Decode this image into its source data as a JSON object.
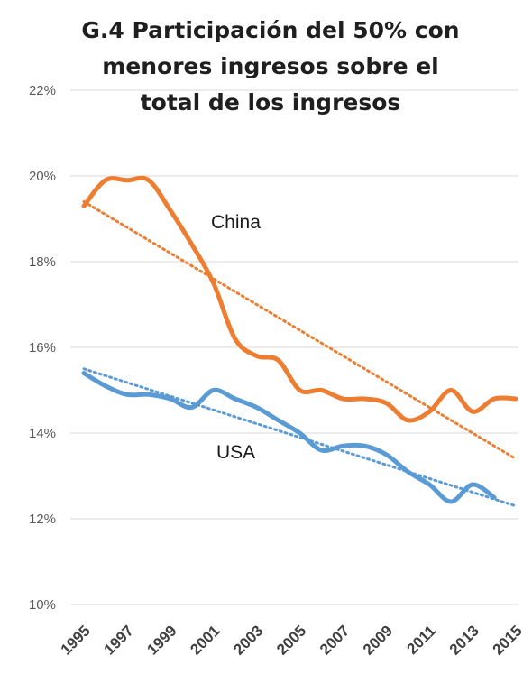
{
  "chart_data": {
    "type": "line",
    "title_lines": [
      "G.4 Participación del 50% con",
      "menores ingresos sobre el",
      "total de los ingresos"
    ],
    "x": [
      1995,
      1996,
      1997,
      1998,
      1999,
      2000,
      2001,
      2002,
      2003,
      2004,
      2005,
      2006,
      2007,
      2008,
      2009,
      2010,
      2011,
      2012,
      2013,
      2014,
      2015
    ],
    "x_tick_labels": [
      "1995",
      "1997",
      "1999",
      "2001",
      "2003",
      "2005",
      "2007",
      "2009",
      "2011",
      "2013",
      "2015"
    ],
    "ylim": [
      0.1,
      0.22
    ],
    "y_tick_labels": [
      "10%",
      "12%",
      "14%",
      "16%",
      "18%",
      "20%",
      "22%"
    ],
    "grid": true,
    "series": [
      {
        "name": "China",
        "color": "#ed7d31",
        "values": [
          0.193,
          0.199,
          0.199,
          0.199,
          0.192,
          0.184,
          0.175,
          0.162,
          0.158,
          0.157,
          0.15,
          0.15,
          0.148,
          0.148,
          0.147,
          0.143,
          0.145,
          0.15,
          0.145,
          0.148,
          0.148
        ],
        "trendline": [
          0.194,
          0.134
        ]
      },
      {
        "name": "USA",
        "color": "#5b9bd5",
        "values": [
          0.154,
          0.151,
          0.149,
          0.149,
          0.148,
          0.146,
          0.15,
          0.148,
          0.146,
          0.143,
          0.14,
          0.136,
          0.137,
          0.137,
          0.135,
          0.131,
          0.128,
          0.124,
          0.128,
          0.125,
          null
        ],
        "trendline": [
          0.155,
          0.123
        ]
      }
    ]
  }
}
